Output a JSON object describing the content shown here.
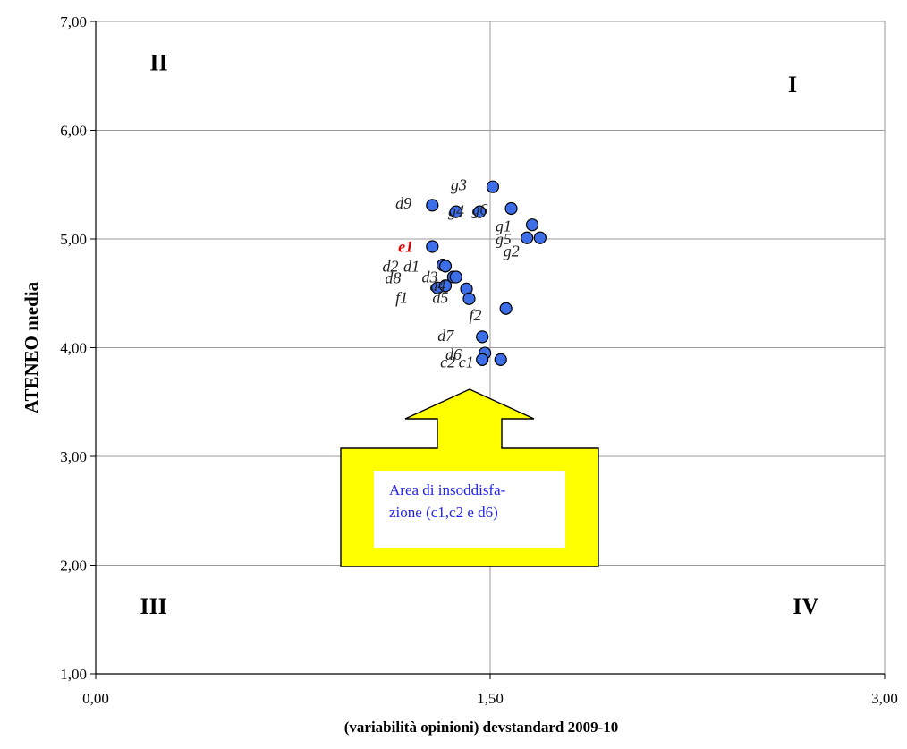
{
  "chart_data": {
    "type": "scatter",
    "xlabel": "(variabilità opinioni) devstandard 2009-10",
    "ylabel": "ATENEO media",
    "xlim": [
      0,
      3
    ],
    "ylim": [
      1,
      7
    ],
    "x_ticks": [
      "0,00",
      "1,50",
      "3,00"
    ],
    "y_ticks": [
      "1,00",
      "2,00",
      "3,00",
      "4,00",
      "5,00",
      "6,00",
      "7,00"
    ],
    "grid": true,
    "quadrant_lines": {
      "x": 1.5,
      "y": 5.0
    },
    "quadrants": [
      {
        "label": "I",
        "x": 2.65,
        "y": 6.35
      },
      {
        "label": "II",
        "x": 0.24,
        "y": 6.55
      },
      {
        "label": "III",
        "x": 0.22,
        "y": 1.55
      },
      {
        "label": "IV",
        "x": 2.7,
        "y": 1.55
      }
    ],
    "point_color": "#3d6ee8",
    "highlight_color": "#e00000",
    "points": [
      {
        "label": "g3",
        "x": 1.51,
        "y": 5.48,
        "lx": 1.35,
        "ly": 5.5,
        "highlight": false
      },
      {
        "label": "d9",
        "x": 1.28,
        "y": 5.31,
        "lx": 1.14,
        "ly": 5.33,
        "highlight": false
      },
      {
        "label": "g4",
        "x": 1.37,
        "y": 5.25,
        "lx": 1.34,
        "ly": 5.26,
        "highlight": false
      },
      {
        "label": "g6",
        "x": 1.46,
        "y": 5.25,
        "lx": 1.43,
        "ly": 5.27,
        "highlight": false
      },
      {
        "label": "g1",
        "x": 1.58,
        "y": 5.28,
        "lx": 1.52,
        "ly": 5.12,
        "highlight": false
      },
      {
        "label": "",
        "x": 1.66,
        "y": 5.13,
        "lx": 0,
        "ly": 0,
        "highlight": false
      },
      {
        "label": "g5",
        "x": 1.64,
        "y": 5.01,
        "lx": 1.52,
        "ly": 5.0,
        "highlight": false
      },
      {
        "label": "g2",
        "x": 1.69,
        "y": 5.01,
        "lx": 1.55,
        "ly": 4.89,
        "highlight": false
      },
      {
        "label": "e1",
        "x": 1.28,
        "y": 4.93,
        "lx": 1.15,
        "ly": 4.93,
        "highlight": true
      },
      {
        "label": "d2",
        "x": 1.32,
        "y": 4.76,
        "lx": 1.09,
        "ly": 4.75,
        "highlight": false
      },
      {
        "label": "d1",
        "x": 1.33,
        "y": 4.75,
        "lx": 1.17,
        "ly": 4.75,
        "highlight": false
      },
      {
        "label": "d8",
        "x": 1.3,
        "y": 4.55,
        "lx": 1.1,
        "ly": 4.64,
        "highlight": false
      },
      {
        "label": "d3",
        "x": 1.36,
        "y": 4.65,
        "lx": 1.24,
        "ly": 4.65,
        "highlight": false
      },
      {
        "label": "d4",
        "x": 1.37,
        "y": 4.65,
        "lx": 1.27,
        "ly": 4.57,
        "highlight": false
      },
      {
        "label": "f1",
        "x": 1.33,
        "y": 4.57,
        "lx": 1.14,
        "ly": 4.46,
        "highlight": false
      },
      {
        "label": "",
        "x": 1.41,
        "y": 4.54,
        "lx": 0,
        "ly": 0,
        "highlight": false
      },
      {
        "label": "d5",
        "x": 1.42,
        "y": 4.45,
        "lx": 1.28,
        "ly": 4.46,
        "highlight": false
      },
      {
        "label": "f2",
        "x": 1.56,
        "y": 4.36,
        "lx": 1.42,
        "ly": 4.3,
        "highlight": false
      },
      {
        "label": "d7",
        "x": 1.47,
        "y": 4.1,
        "lx": 1.3,
        "ly": 4.11,
        "highlight": false
      },
      {
        "label": "d6",
        "x": 1.48,
        "y": 3.95,
        "lx": 1.33,
        "ly": 3.94,
        "highlight": false
      },
      {
        "label": "c2",
        "x": 1.47,
        "y": 3.89,
        "lx": 1.31,
        "ly": 3.87,
        "highlight": false
      },
      {
        "label": "c1",
        "x": 1.54,
        "y": 3.89,
        "lx": 1.38,
        "ly": 3.87,
        "highlight": false
      }
    ],
    "annotation": {
      "lines": [
        "Area di insoddisfa-",
        "zione (c1,c2 e d6)"
      ],
      "color": "#ffff00"
    }
  }
}
